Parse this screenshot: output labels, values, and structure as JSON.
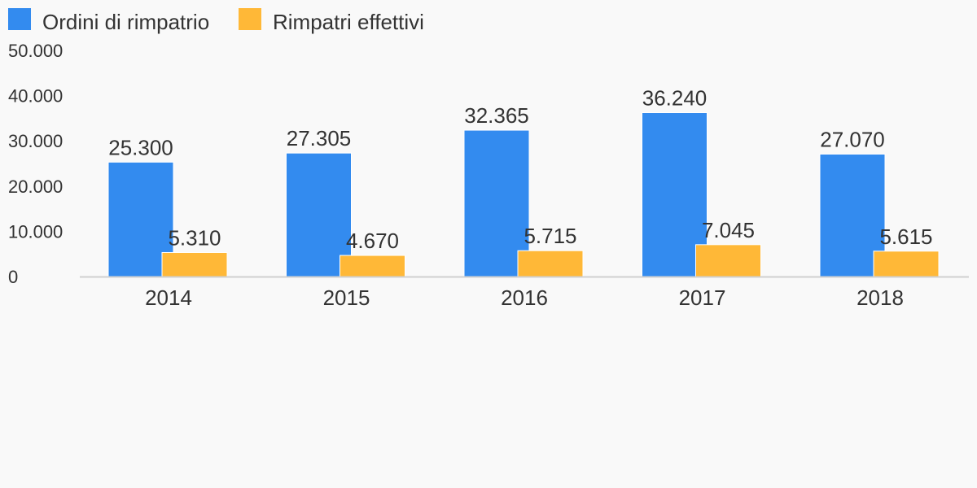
{
  "chart_data": {
    "type": "bar",
    "title": "",
    "xlabel": "",
    "ylabel": "",
    "categories": [
      "2014",
      "2015",
      "2016",
      "2017",
      "2018"
    ],
    "series": [
      {
        "name": "Ordini di rimpatrio",
        "color": "#338bef",
        "values": [
          25300,
          27305,
          32365,
          36240,
          27070
        ],
        "labels": [
          "25.300",
          "27.305",
          "32.365",
          "36.240",
          "27.070"
        ]
      },
      {
        "name": "Rimpatri effettivi",
        "color": "#ffb837",
        "values": [
          5310,
          4670,
          5715,
          7045,
          5615
        ],
        "labels": [
          "5.310",
          "4.670",
          "5.715",
          "7.045",
          "5.615"
        ]
      }
    ],
    "ylim": [
      0,
      50000
    ],
    "yticks": [
      0,
      10000,
      20000,
      30000,
      40000,
      50000
    ],
    "ytick_labels": [
      "0",
      "10.000",
      "20.000",
      "30.000",
      "40.000",
      "50.000"
    ],
    "grid": false,
    "legend": "top-left"
  }
}
